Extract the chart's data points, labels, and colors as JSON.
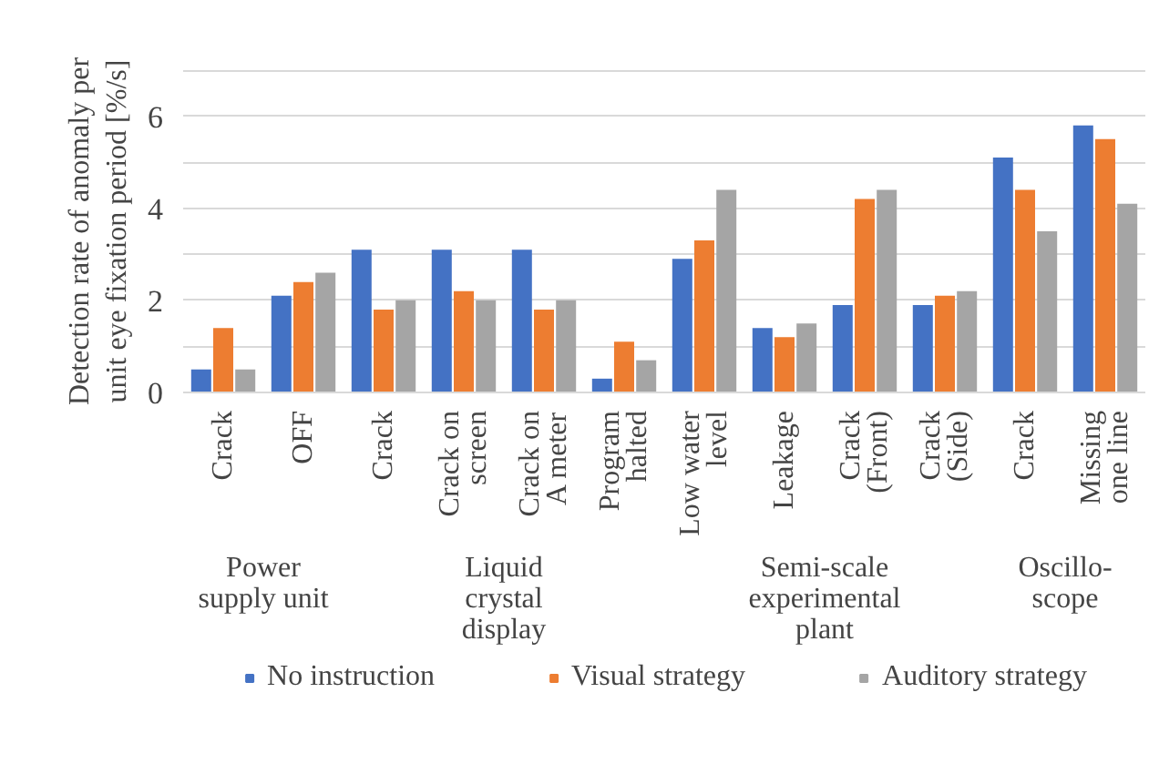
{
  "chart_data": {
    "type": "bar",
    "ylabel": "Detection rate of anomaly per\nunit eye fixation period [%/s]",
    "categories": [
      "Crack",
      "OFF",
      "Crack",
      "Crack on\nscreen",
      "Crack on\nA meter",
      "Program\nhalted",
      "Low water\nlevel",
      "Leakage",
      "Crack\n(Front)",
      "Crack\n(Side)",
      "Crack",
      "Missing\none line"
    ],
    "annotations": [
      "Power\nsupply unit",
      "Liquid\ncrystal\ndisplay",
      "Semi-scale\nexperimental\nplant",
      "Oscillo-\nscope"
    ],
    "series": [
      {
        "name": "No instruction",
        "color": "#4472c4",
        "values": [
          0.5,
          2.1,
          3.1,
          3.1,
          3.1,
          0.3,
          2.9,
          1.4,
          1.9,
          1.9,
          5.1,
          5.8
        ]
      },
      {
        "name": "Visual strategy",
        "color": "#ed7d31",
        "values": [
          1.4,
          2.4,
          1.8,
          2.2,
          1.8,
          1.1,
          3.3,
          1.2,
          4.2,
          2.1,
          4.4,
          5.5
        ]
      },
      {
        "name": "Auditory strategy",
        "color": "#a5a5a5",
        "values": [
          0.5,
          2.6,
          2.0,
          2.0,
          2.0,
          0.7,
          4.4,
          1.5,
          4.4,
          2.2,
          3.5,
          4.1
        ]
      }
    ],
    "ylim": [
      0,
      7
    ],
    "yticks": [
      0,
      {
        "value": 1,
        "label": null
      },
      2,
      {
        "value": 3,
        "label": null
      },
      4,
      {
        "value": 5,
        "label": null
      },
      6,
      {
        "value": 7,
        "label": null
      }
    ],
    "grid": "y",
    "legend": "bottom"
  }
}
